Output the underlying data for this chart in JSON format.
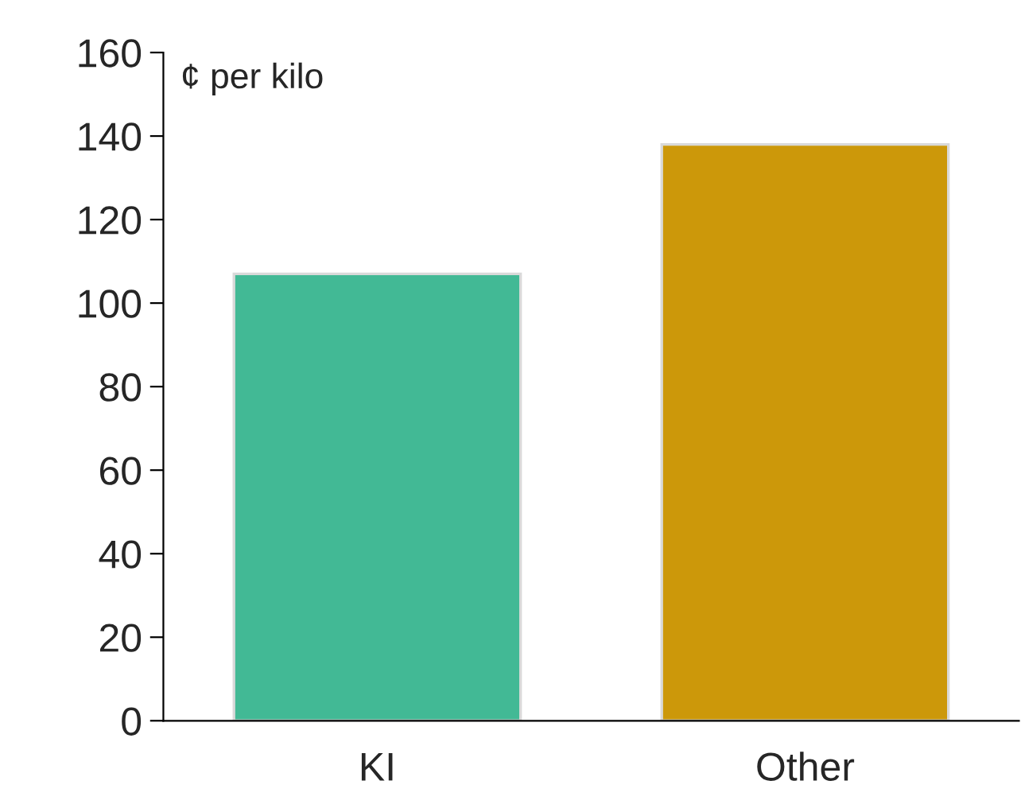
{
  "chart_data": {
    "type": "bar",
    "ylabel": "¢ per kilo",
    "categories": [
      "KI",
      "Other"
    ],
    "values": [
      107,
      138
    ],
    "colors": [
      "#42b995",
      "#cc980a"
    ],
    "ylim": [
      0,
      160
    ],
    "yticks": [
      0,
      20,
      40,
      60,
      80,
      100,
      120,
      140,
      160
    ],
    "grid": false
  }
}
